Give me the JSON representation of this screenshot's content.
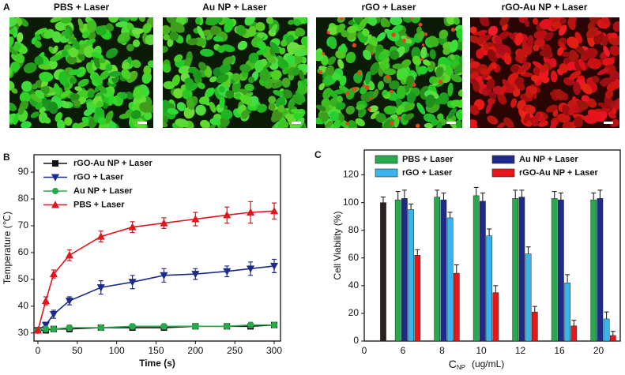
{
  "panel_labels": [
    "A",
    "B",
    "C"
  ],
  "images": [
    {
      "title": "PBS + Laser"
    },
    {
      "title": "Au NP + Laser"
    },
    {
      "title": "rGO + Laser"
    },
    {
      "title": "rGO-Au  NP + Laser"
    }
  ],
  "chart_data": [
    {
      "type": "line",
      "ylabel": "Temperature (℃)",
      "xlabel": "Time (s)",
      "x": [
        0,
        10,
        20,
        40,
        80,
        120,
        160,
        200,
        240,
        270,
        300
      ],
      "xlim": [
        -5,
        308
      ],
      "xticks": [
        0,
        50,
        100,
        150,
        200,
        250,
        300
      ],
      "ylim": [
        27,
        96.5
      ],
      "yticks": [
        30,
        40,
        50,
        60,
        70,
        80,
        90
      ],
      "legend": "upper left",
      "series": [
        {
          "name": "rGO-Au NP + Laser",
          "color": "#111111",
          "marker": "square",
          "values": [
            31,
            31,
            31.5,
            31.5,
            32,
            32,
            32,
            32.5,
            32.5,
            32.5,
            33
          ],
          "errors": [
            1,
            1,
            1,
            1,
            1,
            1,
            1,
            1,
            1,
            1,
            1
          ]
        },
        {
          "name": "rGO + Laser",
          "color": "#1c2a8c",
          "marker": "triangle-down",
          "values": [
            31,
            33,
            37,
            42,
            47,
            49,
            51.5,
            52,
            53,
            54,
            55
          ],
          "errors": [
            1,
            1,
            1.5,
            1.5,
            2.5,
            2.5,
            2.5,
            2,
            2,
            2.5,
            2.5
          ]
        },
        {
          "name": "Au NP + Laser",
          "color": "#2aa84a",
          "marker": "circle",
          "values": [
            31,
            31.5,
            31.5,
            32,
            32,
            32.5,
            32.5,
            32.5,
            32.5,
            33,
            33
          ],
          "errors": [
            1,
            1,
            1,
            1,
            1,
            1,
            1,
            1,
            1,
            1,
            1
          ]
        },
        {
          "name": "PBS + Laser",
          "color": "#e0161c",
          "marker": "triangle-up",
          "values": [
            31,
            42,
            52,
            59,
            66,
            69.5,
            71,
            72.5,
            74,
            75,
            75.5
          ],
          "errors": [
            1,
            1.5,
            1.5,
            2,
            2,
            2,
            2,
            2.5,
            3,
            4,
            3
          ]
        }
      ]
    },
    {
      "type": "bar",
      "ylabel": "Cell Viability (%)",
      "xlabel": {
        "symbol": "C",
        "subscript": "NP",
        "unit": "(ug/mL)"
      },
      "origin_label": "0",
      "categories": [
        null,
        "6",
        "8",
        "10",
        "12",
        "16",
        "20"
      ],
      "ylim": [
        0,
        138
      ],
      "yticks": [
        0,
        20,
        40,
        60,
        80,
        100,
        120
      ],
      "legend": "top",
      "series": [
        {
          "color": "#2b2020",
          "values": [
            100,
            null,
            null,
            null,
            null,
            null,
            null
          ],
          "errors": [
            4,
            null,
            null,
            null,
            null,
            null,
            null
          ]
        },
        {
          "name": "PBS + Laser",
          "color": "#2aa84f",
          "values": [
            null,
            102,
            104,
            105,
            103,
            103,
            102
          ],
          "errors": [
            null,
            6,
            5,
            6,
            6,
            5,
            5
          ]
        },
        {
          "name": "Au NP + Laser",
          "color": "#1f2a8a",
          "values": [
            null,
            103,
            102,
            101,
            104,
            102,
            103
          ],
          "errors": [
            null,
            6,
            5,
            6,
            5,
            5,
            6
          ]
        },
        {
          "name": "rGO + Laser",
          "color": "#38b4ee",
          "values": [
            null,
            95,
            89,
            76,
            63,
            42,
            16
          ],
          "errors": [
            null,
            4,
            4,
            5,
            5,
            6,
            5
          ]
        },
        {
          "name": "rGO-Au NP + Laser",
          "color": "#e8161b",
          "values": [
            null,
            62,
            49,
            35,
            21,
            11,
            4
          ],
          "errors": [
            null,
            4,
            6,
            5,
            4,
            4,
            3
          ]
        }
      ]
    }
  ]
}
